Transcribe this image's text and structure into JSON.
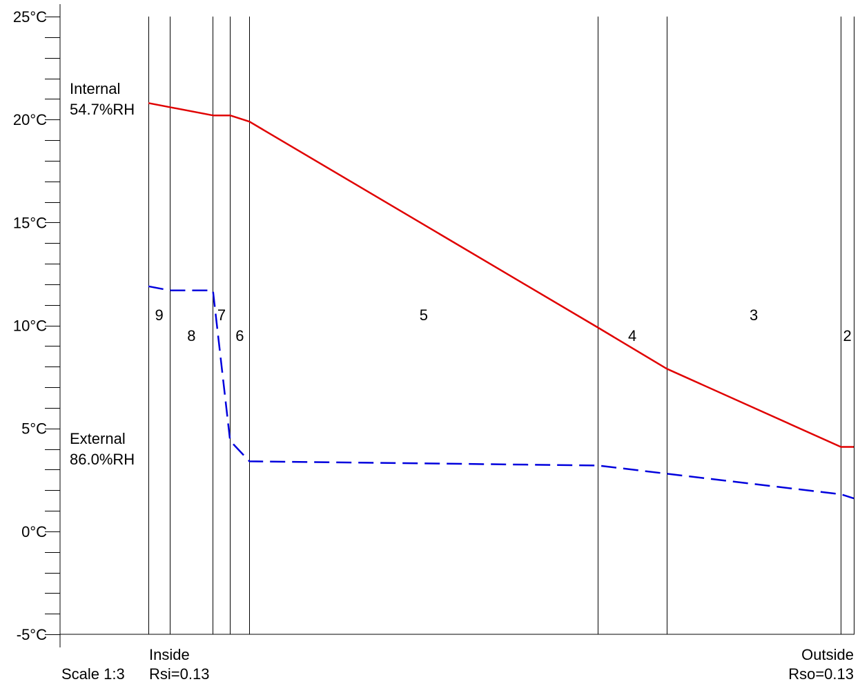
{
  "chart_data": {
    "type": "line",
    "yunit": "°C",
    "ylim": [
      -5,
      25
    ],
    "ytick_labels": [
      "25°C",
      "20°C",
      "15°C",
      "10°C",
      "5°C",
      "0°C",
      "-5°C"
    ],
    "ytick_values": [
      25,
      20,
      15,
      10,
      5,
      0,
      -5
    ],
    "minor_tick_step": 1,
    "boundaries_mm": [
      0,
      10,
      30,
      38,
      47,
      209,
      241,
      322,
      328
    ],
    "layers": [
      {
        "label": "9",
        "from": 0,
        "to": 10,
        "label_row": "upper"
      },
      {
        "label": "8",
        "from": 10,
        "to": 30,
        "label_row": "lower"
      },
      {
        "label": "7",
        "from": 30,
        "to": 38,
        "label_row": "upper"
      },
      {
        "label": "6",
        "from": 38,
        "to": 47,
        "label_row": "lower"
      },
      {
        "label": "5",
        "from": 47,
        "to": 209,
        "label_row": "upper"
      },
      {
        "label": "4",
        "from": 209,
        "to": 241,
        "label_row": "lower"
      },
      {
        "label": "3",
        "from": 241,
        "to": 322,
        "label_row": "upper"
      },
      {
        "label": "2",
        "from": 322,
        "to": 328,
        "label_row": "lower"
      }
    ],
    "series": [
      {
        "color": "#e00000",
        "style": "solid",
        "x": [
          0,
          10,
          30,
          38,
          47,
          209,
          241,
          322,
          328
        ],
        "y": [
          20.8,
          20.6,
          20.2,
          20.2,
          19.9,
          9.9,
          7.9,
          4.1,
          4.1
        ]
      },
      {
        "color": "#0000dd",
        "style": "dashed",
        "x": [
          0,
          10,
          30,
          38,
          47,
          209,
          241,
          322,
          328
        ],
        "y": [
          11.9,
          11.7,
          11.7,
          4.4,
          3.4,
          3.2,
          2.8,
          1.8,
          1.6
        ]
      }
    ],
    "internal": {
      "label": "Internal",
      "rh": "54.7%RH"
    },
    "external": {
      "label": "External",
      "rh": "86.0%RH"
    },
    "inside": {
      "label": "Inside",
      "resistance": "Rsi=0.13"
    },
    "outside": {
      "label": "Outside",
      "resistance": "Rso=0.13"
    },
    "scale": "Scale 1:3"
  }
}
